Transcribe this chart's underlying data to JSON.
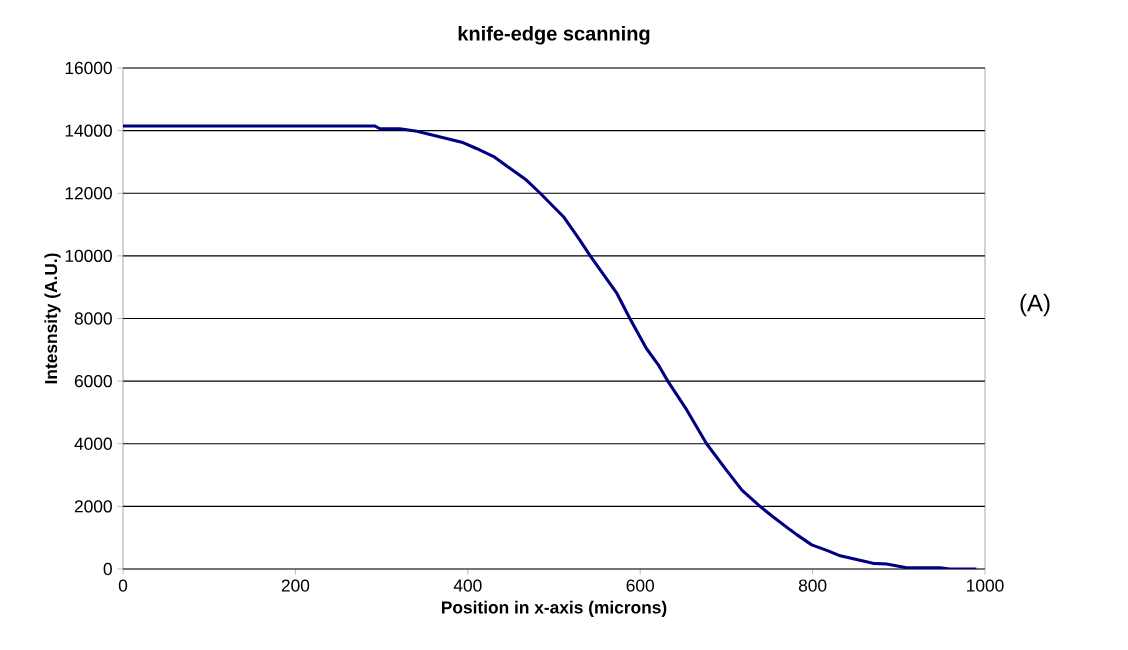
{
  "chart_data": {
    "type": "line",
    "title": "knife-edge scanning",
    "xlabel": "Position in x-axis (microns)",
    "ylabel": "Intesnsity (A.U.)",
    "annotations": [
      "(A)"
    ],
    "x": [
      0,
      292,
      298,
      321,
      341,
      393,
      410,
      430,
      468,
      484,
      511,
      530,
      542,
      573,
      588,
      607,
      621,
      632,
      654,
      677,
      700,
      718,
      739,
      754,
      774,
      782,
      799,
      818,
      832,
      870,
      886,
      909,
      948,
      959,
      990
    ],
    "series": [
      {
        "color": "#000080",
        "values": [
          14150,
          14150,
          14060,
          14060,
          13980,
          13630,
          13430,
          13170,
          12420,
          12000,
          11250,
          10500,
          10000,
          8800,
          8000,
          7050,
          6520,
          6000,
          5080,
          4000,
          3160,
          2520,
          2000,
          1670,
          1250,
          1090,
          770,
          580,
          420,
          180,
          160,
          40,
          40,
          0,
          0
        ]
      }
    ],
    "xlim": [
      0,
      1000
    ],
    "ylim": [
      0,
      16000
    ],
    "xticks": [
      0,
      200,
      400,
      600,
      800,
      1000
    ],
    "yticks": [
      0,
      2000,
      4000,
      6000,
      8000,
      10000,
      12000,
      14000,
      16000
    ],
    "grid": "y",
    "marker": "none",
    "line_style": "solid"
  }
}
